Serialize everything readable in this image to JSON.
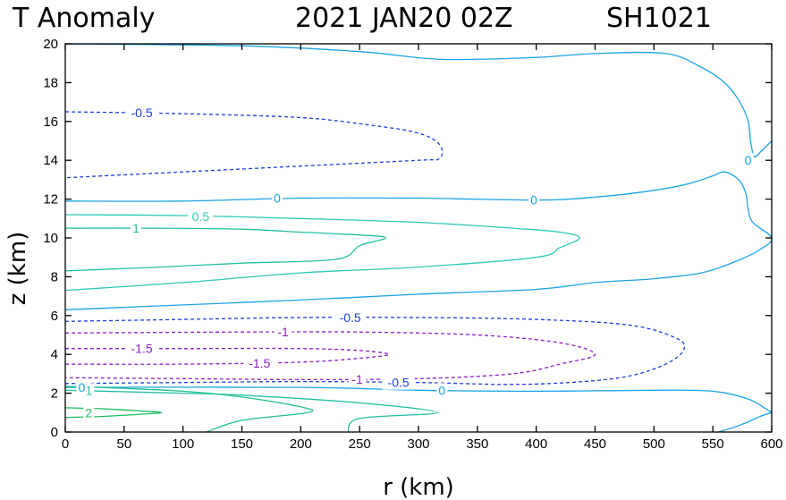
{
  "chart_data": {
    "type": "contour",
    "title": {
      "left": "T Anomaly",
      "center": "2021 JAN20 02Z",
      "right": "SH1021"
    },
    "xlabel": "r (km)",
    "ylabel": "z (km)",
    "xlim": [
      0,
      600
    ],
    "ylim": [
      0,
      20
    ],
    "xticks": [
      "0",
      "50",
      "100",
      "150",
      "200",
      "250",
      "300",
      "350",
      "400",
      "450",
      "500",
      "550",
      "600"
    ],
    "yticks": [
      "0",
      "2",
      "4",
      "6",
      "8",
      "10",
      "12",
      "14",
      "16",
      "18",
      "20"
    ],
    "colors": {
      "zero": "#1aa3e8",
      "neg05": "#1f3fd6",
      "neg1": "#8a1fc4",
      "neg15": "#8a1fc4",
      "pos05": "#2ec9b4",
      "pos1": "#22c0a0",
      "pos15": "#20c08a",
      "pos2": "#18c060"
    },
    "contours": [
      {
        "level": 0,
        "linestyle": "solid",
        "color_key": "zero",
        "points": [
          [
            0,
            20
          ],
          [
            150,
            19.9
          ],
          [
            250,
            19.6
          ],
          [
            320,
            19.2
          ],
          [
            400,
            19.3
          ],
          [
            450,
            19.5
          ],
          [
            510,
            19.5
          ],
          [
            540,
            18.8
          ],
          [
            560,
            18
          ],
          [
            573,
            17
          ],
          [
            580,
            16
          ],
          [
            582,
            15
          ],
          [
            585,
            14.2
          ],
          [
            590,
            14.4
          ],
          [
            600,
            15
          ]
        ]
      },
      {
        "level": 0,
        "linestyle": "solid",
        "color_key": "zero",
        "points": [
          [
            0,
            11.9
          ],
          [
            100,
            11.9
          ],
          [
            200,
            12.05
          ],
          [
            300,
            12.05
          ],
          [
            400,
            11.95
          ],
          [
            450,
            12.1
          ],
          [
            500,
            12.45
          ],
          [
            530,
            12.8
          ],
          [
            550,
            13.2
          ],
          [
            560,
            13.4
          ],
          [
            572,
            13
          ],
          [
            578,
            12.3
          ],
          [
            580,
            11.5
          ],
          [
            584,
            10.8
          ],
          [
            600,
            10
          ],
          [
            590,
            9.4
          ],
          [
            570,
            8.8
          ],
          [
            540,
            8.2
          ],
          [
            500,
            7.9
          ],
          [
            450,
            7.7
          ],
          [
            400,
            7.35
          ],
          [
            300,
            7.1
          ],
          [
            200,
            6.8
          ],
          [
            100,
            6.55
          ],
          [
            0,
            6.3
          ]
        ]
      },
      {
        "level": 0,
        "linestyle": "solid",
        "color_key": "zero",
        "points": [
          [
            0,
            2.3
          ],
          [
            200,
            2.3
          ],
          [
            300,
            2.15
          ],
          [
            400,
            2.1
          ],
          [
            500,
            2.15
          ],
          [
            550,
            2.1
          ],
          [
            580,
            1.7
          ],
          [
            595,
            1.2
          ],
          [
            600,
            1
          ]
        ]
      },
      {
        "level": 0,
        "linestyle": "solid",
        "color_key": "zero",
        "points": [
          [
            555,
            0
          ],
          [
            575,
            0.4
          ],
          [
            590,
            0.8
          ],
          [
            600,
            1
          ]
        ]
      },
      {
        "level": -0.5,
        "linestyle": "dashed",
        "color_key": "neg05",
        "points": [
          [
            0,
            16.5
          ],
          [
            100,
            16.4
          ],
          [
            200,
            16.2
          ],
          [
            260,
            15.8
          ],
          [
            300,
            15.4
          ],
          [
            318,
            14.8
          ],
          [
            318,
            14.1
          ],
          [
            300,
            14
          ],
          [
            200,
            13.7
          ],
          [
            100,
            13.4
          ],
          [
            0,
            13.1
          ]
        ]
      },
      {
        "level": -0.5,
        "linestyle": "dashed",
        "color_key": "neg05",
        "points": [
          [
            0,
            5.7
          ],
          [
            100,
            5.8
          ],
          [
            200,
            5.9
          ],
          [
            300,
            5.9
          ],
          [
            400,
            5.8
          ],
          [
            480,
            5.5
          ],
          [
            520,
            4.8
          ],
          [
            525,
            4.2
          ],
          [
            510,
            3.5
          ],
          [
            480,
            2.9
          ],
          [
            440,
            2.6
          ],
          [
            380,
            2.45
          ],
          [
            300,
            2.55
          ],
          [
            200,
            2.6
          ],
          [
            100,
            2.55
          ],
          [
            0,
            2.5
          ]
        ]
      },
      {
        "level": -1,
        "linestyle": "dashed",
        "color_key": "neg1",
        "points": [
          [
            0,
            5.1
          ],
          [
            150,
            5.15
          ],
          [
            250,
            5.15
          ],
          [
            350,
            5
          ],
          [
            420,
            4.6
          ],
          [
            450,
            4
          ],
          [
            420,
            3.5
          ],
          [
            380,
            3
          ],
          [
            300,
            2.75
          ],
          [
            200,
            2.7
          ],
          [
            100,
            2.75
          ],
          [
            0,
            2.8
          ]
        ]
      },
      {
        "level": -1.5,
        "linestyle": "dashed",
        "color_key": "neg15",
        "points": [
          [
            0,
            4.3
          ],
          [
            100,
            4.3
          ],
          [
            200,
            4.3
          ],
          [
            250,
            4.2
          ],
          [
            275,
            4
          ],
          [
            250,
            3.8
          ],
          [
            200,
            3.6
          ],
          [
            100,
            3.5
          ],
          [
            0,
            3.5
          ]
        ]
      },
      {
        "level": 0.5,
        "linestyle": "solid",
        "color_key": "pos05",
        "points": [
          [
            0,
            11.2
          ],
          [
            100,
            11.15
          ],
          [
            200,
            11
          ],
          [
            300,
            10.8
          ],
          [
            380,
            10.5
          ],
          [
            420,
            10.3
          ],
          [
            437,
            10
          ],
          [
            420,
            9.5
          ],
          [
            400,
            9
          ],
          [
            300,
            8.5
          ],
          [
            200,
            8.2
          ],
          [
            100,
            7.7
          ],
          [
            0,
            7.3
          ]
        ]
      },
      {
        "level": 1,
        "linestyle": "solid",
        "color_key": "pos1",
        "points": [
          [
            0,
            10.5
          ],
          [
            80,
            10.5
          ],
          [
            150,
            10.45
          ],
          [
            200,
            10.3
          ],
          [
            250,
            10.15
          ],
          [
            272,
            10
          ],
          [
            250,
            9.6
          ],
          [
            230,
            8.9
          ],
          [
            150,
            8.7
          ],
          [
            80,
            8.5
          ],
          [
            0,
            8.3
          ]
        ]
      },
      {
        "level": 1,
        "linestyle": "solid",
        "color_key": "pos1",
        "points": [
          [
            0,
            2.15
          ],
          [
            100,
            2
          ],
          [
            150,
            1.9
          ],
          [
            250,
            1.5
          ],
          [
            316,
            1
          ],
          [
            250,
            0.7
          ],
          [
            240,
            0
          ]
        ]
      },
      {
        "level": 1.5,
        "linestyle": "solid",
        "color_key": "pos15",
        "points": [
          [
            0,
            2.35
          ],
          [
            30,
            2.3
          ],
          [
            100,
            2.1
          ],
          [
            150,
            1.8
          ],
          [
            200,
            1.3
          ],
          [
            206,
            1
          ],
          [
            150,
            0.6
          ],
          [
            120,
            0
          ]
        ]
      },
      {
        "level": 2,
        "linestyle": "solid",
        "color_key": "pos2",
        "points": [
          [
            0,
            1.25
          ],
          [
            30,
            1.2
          ],
          [
            60,
            1.1
          ],
          [
            82,
            1
          ],
          [
            60,
            0.9
          ],
          [
            30,
            0.8
          ],
          [
            0,
            0.75
          ]
        ]
      }
    ],
    "contour_labels": [
      {
        "text": "0",
        "x": 180,
        "y": 12.05,
        "color_key": "zero"
      },
      {
        "text": "0",
        "x": 398,
        "y": 11.95,
        "color_key": "zero"
      },
      {
        "text": "0",
        "x": 580,
        "y": 14.0,
        "color_key": "zero"
      },
      {
        "text": "0",
        "x": 320,
        "y": 2.15,
        "color_key": "zero"
      },
      {
        "text": "0.5",
        "x": 115,
        "y": 11.1,
        "color_key": "pos05"
      },
      {
        "text": "1",
        "x": 60,
        "y": 10.5,
        "color_key": "pos1"
      },
      {
        "text": "-0.5",
        "x": 65,
        "y": 16.45,
        "color_key": "neg05"
      },
      {
        "text": "-0.5",
        "x": 242,
        "y": 5.9,
        "color_key": "neg05"
      },
      {
        "text": "-0.5",
        "x": 283,
        "y": 2.55,
        "color_key": "neg05"
      },
      {
        "text": "-1",
        "x": 185,
        "y": 5.15,
        "color_key": "neg1"
      },
      {
        "text": "-1",
        "x": 248,
        "y": 2.72,
        "color_key": "neg1"
      },
      {
        "text": "-1.5",
        "x": 65,
        "y": 4.3,
        "color_key": "neg15"
      },
      {
        "text": "-1.5",
        "x": 165,
        "y": 3.55,
        "color_key": "neg15"
      },
      {
        "text": "2",
        "x": 20,
        "y": 1.0,
        "color_key": "pos2"
      },
      {
        "text": "1",
        "x": 20,
        "y": 2.15,
        "color_key": "pos1"
      },
      {
        "text": "0",
        "x": 14,
        "y": 2.3,
        "color_key": "zero"
      }
    ]
  }
}
